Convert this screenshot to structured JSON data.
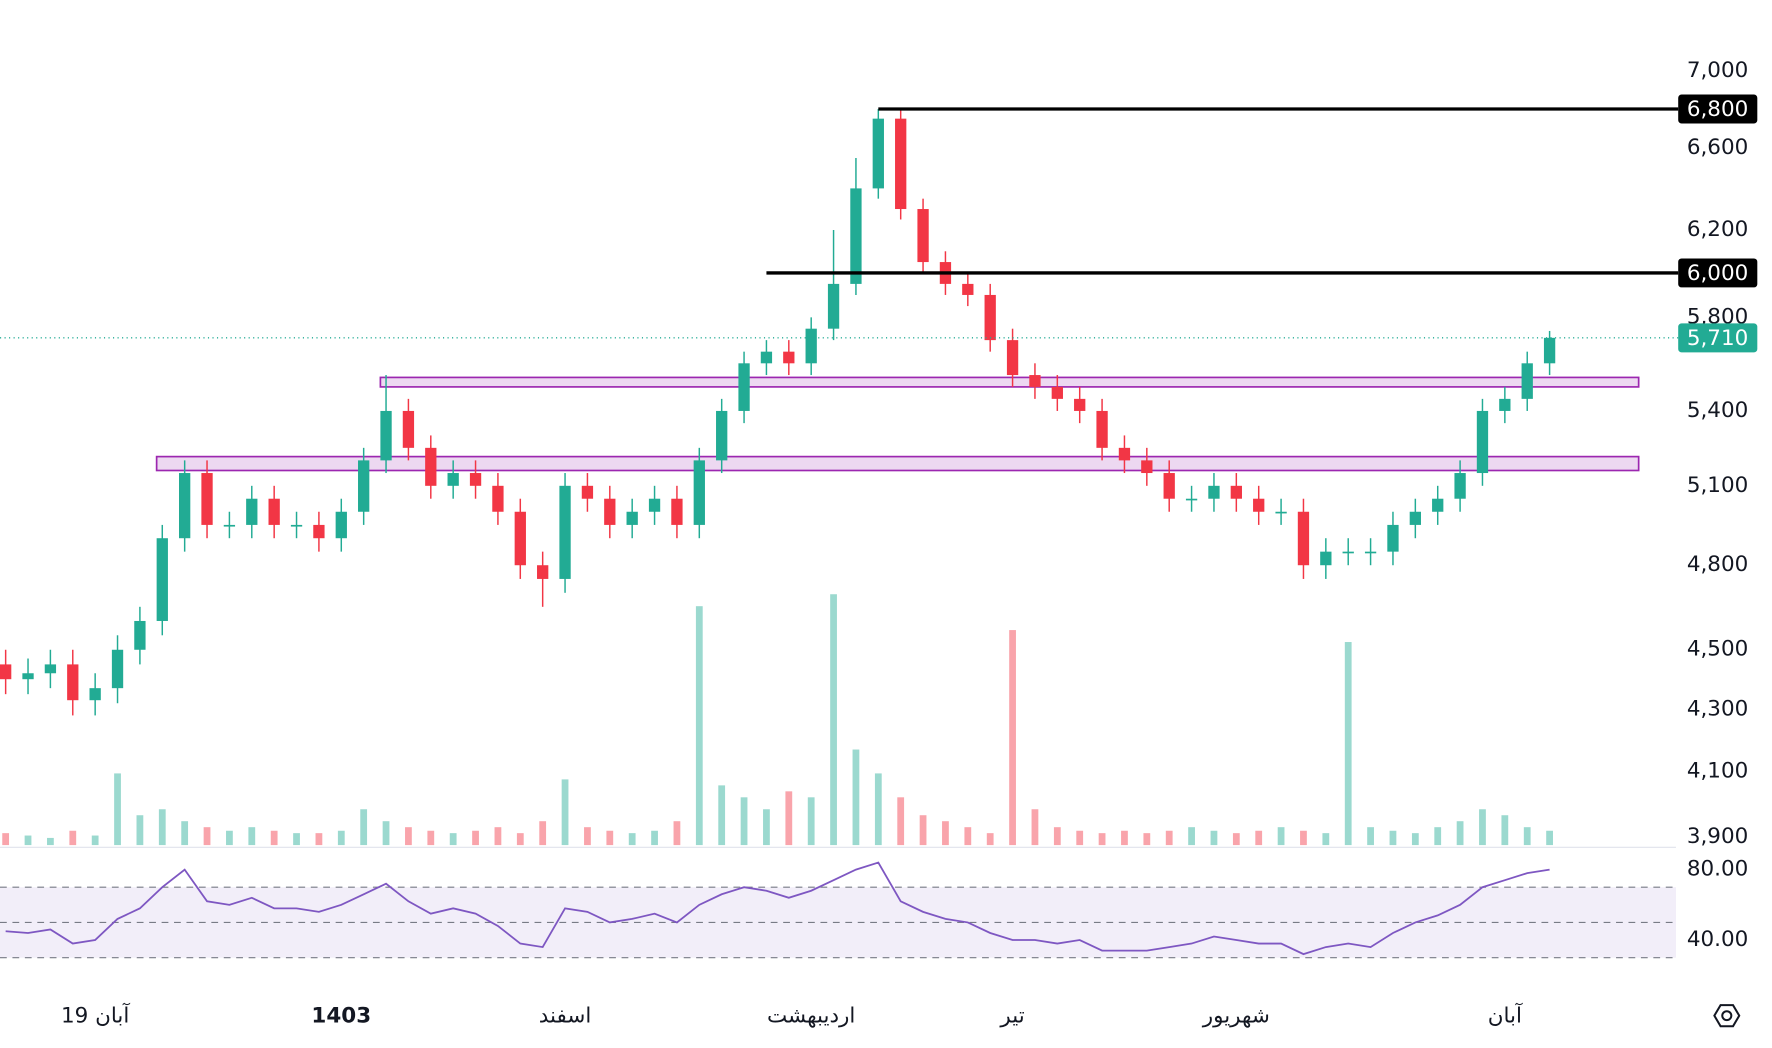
{
  "chart_data": {
    "type": "candlestick",
    "log_scale": true,
    "categories": [
      null,
      null,
      null,
      null,
      "19 آبان",
      null,
      null,
      null,
      null,
      null,
      null,
      null,
      null,
      null,
      null,
      "1403",
      null,
      null,
      null,
      null,
      null,
      null,
      null,
      null,
      null,
      "اسفند",
      null,
      null,
      null,
      null,
      null,
      null,
      null,
      null,
      null,
      null,
      "اردیبهشت",
      null,
      null,
      null,
      null,
      null,
      null,
      null,
      null,
      "تیر",
      null,
      null,
      null,
      null,
      null,
      null,
      null,
      null,
      null,
      "شهریور",
      null,
      null,
      null,
      null,
      null,
      null,
      null,
      null,
      null,
      null,
      null,
      "آبان",
      null,
      null
    ],
    "bold_categories": [
      "1403"
    ],
    "open": [
      4450,
      4400,
      4420,
      4450,
      4330,
      4370,
      4500,
      4600,
      4900,
      5150,
      4950,
      4950,
      5050,
      4950,
      4950,
      4900,
      5000,
      5200,
      5400,
      5250,
      5100,
      5150,
      5100,
      5000,
      4800,
      4750,
      5100,
      5050,
      4950,
      5000,
      5050,
      4950,
      5200,
      5400,
      5600,
      5650,
      5600,
      5750,
      5950,
      6400,
      6750,
      6300,
      6050,
      5950,
      5900,
      5700,
      5550,
      5500,
      5450,
      5400,
      5250,
      5200,
      5150,
      5050,
      5050,
      5100,
      5050,
      5000,
      5000,
      4800,
      4850,
      4850,
      4850,
      4950,
      5000,
      5050,
      5150,
      5400,
      5450,
      5600
    ],
    "high": [
      4500,
      4470,
      4500,
      4500,
      4420,
      4550,
      4650,
      4950,
      5200,
      5200,
      5000,
      5100,
      5100,
      5000,
      5000,
      5050,
      5250,
      5550,
      5450,
      5300,
      5200,
      5200,
      5150,
      5050,
      4850,
      5150,
      5150,
      5100,
      5050,
      5100,
      5100,
      5250,
      5450,
      5650,
      5700,
      5700,
      5800,
      6200,
      6550,
      6800,
      6800,
      6350,
      6100,
      6000,
      5950,
      5750,
      5600,
      5550,
      5500,
      5450,
      5300,
      5250,
      5200,
      5100,
      5150,
      5150,
      5100,
      5050,
      5050,
      4900,
      4900,
      4900,
      5000,
      5050,
      5100,
      5200,
      5450,
      5500,
      5650,
      5740
    ],
    "low": [
      4350,
      4350,
      4370,
      4280,
      4280,
      4320,
      4450,
      4550,
      4850,
      4900,
      4900,
      4900,
      4900,
      4900,
      4850,
      4850,
      4950,
      5150,
      5200,
      5050,
      5050,
      5050,
      4950,
      4750,
      4650,
      4700,
      5000,
      4900,
      4900,
      4950,
      4900,
      4900,
      5150,
      5350,
      5550,
      5550,
      5550,
      5700,
      5900,
      6350,
      6250,
      6000,
      5900,
      5850,
      5650,
      5500,
      5450,
      5400,
      5350,
      5200,
      5150,
      5100,
      5000,
      5000,
      5000,
      5000,
      4950,
      4950,
      4750,
      4750,
      4800,
      4800,
      4800,
      4900,
      4950,
      5000,
      5100,
      5350,
      5400,
      5550
    ],
    "close": [
      4400,
      4420,
      4450,
      4330,
      4370,
      4500,
      4600,
      4900,
      5150,
      4950,
      4950,
      5050,
      4950,
      4950,
      4900,
      5000,
      5200,
      5400,
      5250,
      5100,
      5150,
      5100,
      5000,
      4800,
      4750,
      5100,
      5050,
      4950,
      5000,
      5050,
      4950,
      5200,
      5400,
      5600,
      5650,
      5600,
      5750,
      5950,
      6400,
      6750,
      6300,
      6050,
      5950,
      5900,
      5700,
      5550,
      5500,
      5450,
      5400,
      5250,
      5200,
      5150,
      5050,
      5050,
      5100,
      5050,
      5000,
      5000,
      4800,
      4850,
      4850,
      4850,
      4950,
      5000,
      5050,
      5150,
      5400,
      5450,
      5600,
      5710
    ],
    "up_color": "#22ab94",
    "down_color": "#f23645",
    "volume": [
      10,
      8,
      6,
      12,
      8,
      60,
      25,
      30,
      20,
      15,
      12,
      15,
      12,
      10,
      10,
      12,
      30,
      20,
      15,
      12,
      10,
      12,
      15,
      10,
      20,
      55,
      15,
      12,
      10,
      12,
      20,
      200,
      50,
      40,
      30,
      45,
      40,
      210,
      80,
      60,
      40,
      25,
      20,
      15,
      10,
      180,
      30,
      15,
      12,
      10,
      12,
      10,
      12,
      15,
      12,
      10,
      12,
      15,
      12,
      10,
      170,
      15,
      12,
      10,
      15,
      20,
      30,
      25,
      15,
      12
    ],
    "ylim": [
      3870,
      7390
    ],
    "yticks": [
      {
        "value": 7000,
        "label": "7,000"
      },
      {
        "value": 6600,
        "label": "6,600"
      },
      {
        "value": 6200,
        "label": "6,200"
      },
      {
        "value": 5800,
        "label": "5,800"
      },
      {
        "value": 5400,
        "label": "5,400"
      },
      {
        "value": 5100,
        "label": "5,100"
      },
      {
        "value": 4800,
        "label": "4,800"
      },
      {
        "value": 4500,
        "label": "4,500"
      },
      {
        "value": 4300,
        "label": "4,300"
      },
      {
        "value": 4100,
        "label": "4,100"
      },
      {
        "value": 3900,
        "label": "3,900"
      }
    ],
    "levels": [
      {
        "value": 6800,
        "label": "6,800",
        "from_index": 39
      },
      {
        "value": 6000,
        "label": "6,000",
        "from_index": 34
      }
    ],
    "level_color": "#000000",
    "zones": [
      {
        "low": 5500,
        "high": 5540,
        "from_index": 17
      },
      {
        "low": 5160,
        "high": 5215,
        "from_index": 7
      }
    ],
    "zone_color": "#9c27b0",
    "last_price": {
      "value": 5710,
      "label": "5,710"
    },
    "rsi": {
      "color": "#7e57c2",
      "values": [
        45,
        44,
        46,
        38,
        40,
        52,
        58,
        70,
        80,
        62,
        60,
        64,
        58,
        58,
        56,
        60,
        66,
        72,
        62,
        55,
        58,
        55,
        48,
        38,
        36,
        58,
        56,
        50,
        52,
        55,
        50,
        60,
        66,
        70,
        68,
        64,
        68,
        74,
        80,
        84,
        62,
        56,
        52,
        50,
        44,
        40,
        40,
        38,
        40,
        34,
        34,
        34,
        36,
        38,
        42,
        40,
        38,
        38,
        32,
        36,
        38,
        36,
        44,
        50,
        54,
        60,
        70,
        74,
        78,
        80
      ],
      "ylim": [
        23,
        89.5
      ],
      "yticks": [
        {
          "value": 80,
          "label": "80.00"
        },
        {
          "value": 40,
          "label": "40.00"
        }
      ],
      "bands": [
        70,
        50,
        30
      ]
    }
  }
}
